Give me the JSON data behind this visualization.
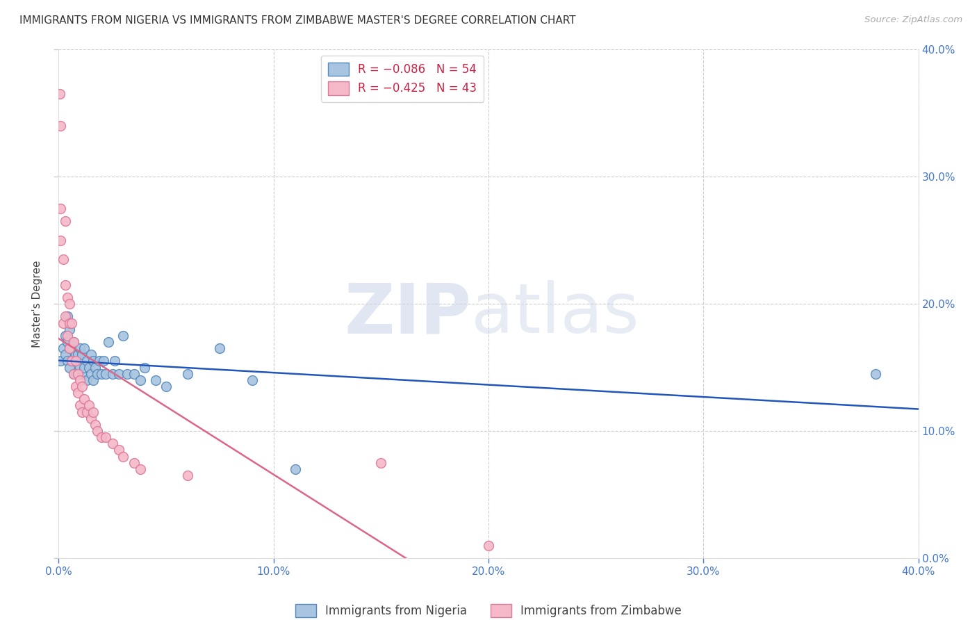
{
  "title": "IMMIGRANTS FROM NIGERIA VS IMMIGRANTS FROM ZIMBABWE MASTER'S DEGREE CORRELATION CHART",
  "source": "Source: ZipAtlas.com",
  "ylabel": "Master's Degree",
  "xlim": [
    0.0,
    0.4
  ],
  "ylim": [
    0.0,
    0.4
  ],
  "x_ticks": [
    0.0,
    0.1,
    0.2,
    0.3,
    0.4
  ],
  "y_ticks": [
    0.0,
    0.1,
    0.2,
    0.3,
    0.4
  ],
  "nigeria_color": "#a8c4e0",
  "nigeria_edge_color": "#5588bb",
  "zimbabwe_color": "#f4b8c8",
  "zimbabwe_edge_color": "#dd7799",
  "nigeria_R": -0.086,
  "nigeria_N": 54,
  "zimbabwe_R": -0.425,
  "zimbabwe_N": 43,
  "legend_label_nigeria": "Immigrants from Nigeria",
  "legend_label_zimbabwe": "Immigrants from Zimbabwe",
  "nigeria_line_color": "#2255bb",
  "zimbabwe_line_color": "#dd6688",
  "background_color": "#ffffff",
  "nigeria_x": [
    0.001,
    0.002,
    0.003,
    0.003,
    0.004,
    0.004,
    0.004,
    0.005,
    0.005,
    0.005,
    0.006,
    0.006,
    0.007,
    0.007,
    0.007,
    0.008,
    0.008,
    0.009,
    0.009,
    0.01,
    0.01,
    0.011,
    0.011,
    0.012,
    0.012,
    0.013,
    0.013,
    0.014,
    0.015,
    0.015,
    0.016,
    0.016,
    0.017,
    0.018,
    0.019,
    0.02,
    0.021,
    0.022,
    0.023,
    0.025,
    0.026,
    0.028,
    0.03,
    0.032,
    0.035,
    0.038,
    0.04,
    0.045,
    0.05,
    0.06,
    0.075,
    0.09,
    0.11,
    0.38
  ],
  "nigeria_y": [
    0.155,
    0.165,
    0.175,
    0.16,
    0.19,
    0.17,
    0.155,
    0.18,
    0.165,
    0.15,
    0.165,
    0.155,
    0.17,
    0.155,
    0.145,
    0.16,
    0.145,
    0.16,
    0.145,
    0.165,
    0.15,
    0.16,
    0.145,
    0.165,
    0.15,
    0.155,
    0.14,
    0.15,
    0.16,
    0.145,
    0.155,
    0.14,
    0.15,
    0.145,
    0.155,
    0.145,
    0.155,
    0.145,
    0.17,
    0.145,
    0.155,
    0.145,
    0.175,
    0.145,
    0.145,
    0.14,
    0.15,
    0.14,
    0.135,
    0.145,
    0.165,
    0.14,
    0.07,
    0.145
  ],
  "zimbabwe_x": [
    0.0005,
    0.0008,
    0.001,
    0.001,
    0.002,
    0.002,
    0.003,
    0.003,
    0.003,
    0.004,
    0.004,
    0.005,
    0.005,
    0.005,
    0.006,
    0.006,
    0.007,
    0.007,
    0.008,
    0.008,
    0.009,
    0.009,
    0.01,
    0.01,
    0.011,
    0.011,
    0.012,
    0.013,
    0.014,
    0.015,
    0.016,
    0.017,
    0.018,
    0.02,
    0.022,
    0.025,
    0.028,
    0.03,
    0.035,
    0.038,
    0.06,
    0.15,
    0.2
  ],
  "zimbabwe_y": [
    0.365,
    0.34,
    0.275,
    0.25,
    0.235,
    0.185,
    0.265,
    0.215,
    0.19,
    0.205,
    0.175,
    0.2,
    0.185,
    0.165,
    0.185,
    0.155,
    0.17,
    0.145,
    0.155,
    0.135,
    0.145,
    0.13,
    0.14,
    0.12,
    0.135,
    0.115,
    0.125,
    0.115,
    0.12,
    0.11,
    0.115,
    0.105,
    0.1,
    0.095,
    0.095,
    0.09,
    0.085,
    0.08,
    0.075,
    0.07,
    0.065,
    0.075,
    0.01
  ]
}
